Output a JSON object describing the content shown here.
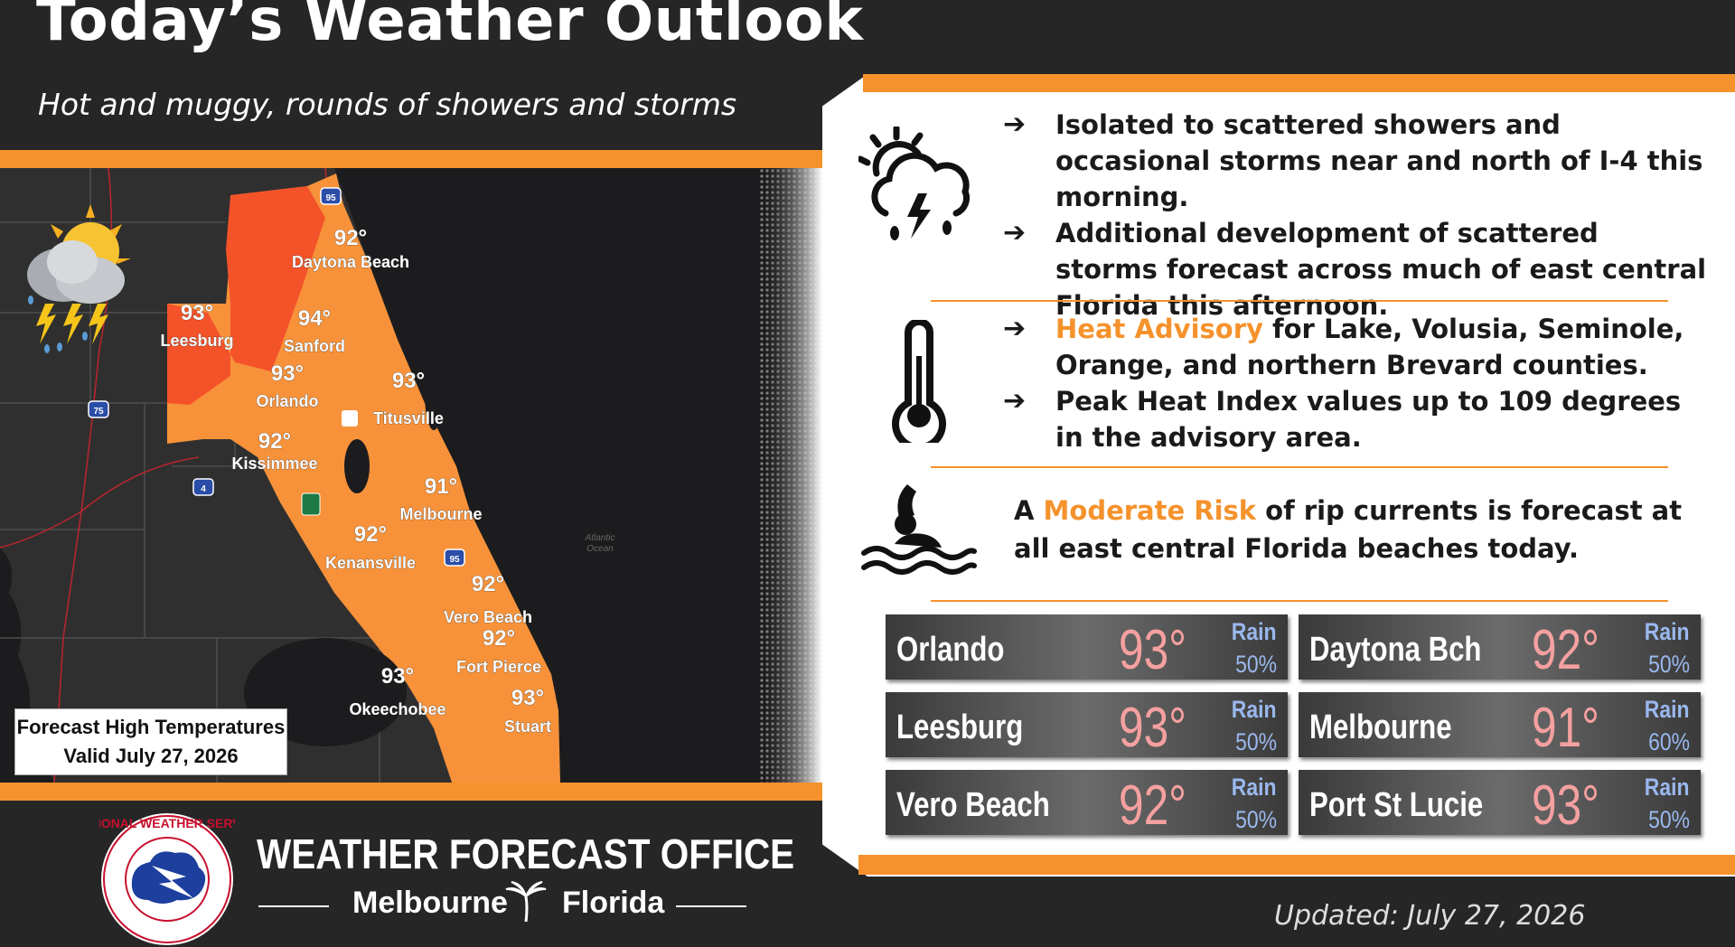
{
  "header": {
    "title": "Today’s Weather Outlook",
    "subtitle": "Hot and muggy, rounds of showers and storms"
  },
  "map": {
    "caption_line1": "Forecast High Temperatures",
    "caption_line2": "Valid July 27, 2026",
    "water_label_1": "Atlantic",
    "water_label_2": "Ocean",
    "shields": [
      "95",
      "75",
      "4",
      "95"
    ],
    "points": [
      {
        "temp": "92°",
        "name": "Daytona Beach"
      },
      {
        "temp": "93°",
        "name": "Leesburg"
      },
      {
        "temp": "94°",
        "name": "Sanford"
      },
      {
        "temp": "93°",
        "name": "Orlando"
      },
      {
        "temp": "93°",
        "name": "Titusville"
      },
      {
        "temp": "92°",
        "name": "Kissimmee"
      },
      {
        "temp": "91°",
        "name": "Melbourne"
      },
      {
        "temp": "92°",
        "name": "Kenansville"
      },
      {
        "temp": "92°",
        "name": "Vero Beach"
      },
      {
        "temp": "92°",
        "name": "Fort Pierce"
      },
      {
        "temp": "93°",
        "name": "Okeechobee"
      },
      {
        "temp": "93°",
        "name": "Stuart"
      }
    ],
    "colors": {
      "heat_dark": "#f4532a",
      "heat": "#f7923a",
      "land": "#2f2f2f",
      "water": "#1c1c1e"
    }
  },
  "panel": {
    "storms": {
      "icon": "storm-cloud-icon",
      "bullets": [
        {
          "text": "Isolated to scattered showers and occasional storms near and north of I-4 this morning."
        },
        {
          "text": "Additional development of scattered storms forecast across much of east central Florida this afternoon."
        }
      ]
    },
    "heat": {
      "icon": "thermometer-icon",
      "bullet1_highlight": "Heat Advisory",
      "bullet1_rest": " for Lake, Volusia, Seminole, Orange, and northern Brevard counties.",
      "bullet2": "Peak Heat Index values up to 109 degrees in the advisory area."
    },
    "rip": {
      "icon": "swimmer-icon",
      "prefix": "A ",
      "highlight": "Moderate Risk",
      "rest": " of rip currents is forecast at all east central Florida beaches today."
    },
    "arrow": "➔"
  },
  "cities": [
    {
      "name": "Orlando",
      "temp": "93°",
      "rain_label": "Rain",
      "rain": "50%"
    },
    {
      "name": "Daytona Bch",
      "temp": "92°",
      "rain_label": "Rain",
      "rain": "50%"
    },
    {
      "name": "Leesburg",
      "temp": "93°",
      "rain_label": "Rain",
      "rain": "50%"
    },
    {
      "name": "Melbourne",
      "temp": "91°",
      "rain_label": "Rain",
      "rain": "60%"
    },
    {
      "name": "Vero Beach",
      "temp": "92°",
      "rain_label": "Rain",
      "rain": "50%"
    },
    {
      "name": "Port St Lucie",
      "temp": "93°",
      "rain_label": "Rain",
      "rain": "50%"
    }
  ],
  "footer": {
    "logo_text": "NATIONAL WEATHER SERVICE",
    "office": "WEATHER FORECAST OFFICE",
    "city": "Melbourne",
    "state": "Florida",
    "updated": "Updated: July 27, 2026"
  },
  "colors": {
    "accent": "#f5922c",
    "background": "#262626",
    "temp": "#f5a0a0",
    "rain": "#9ab8ee"
  }
}
